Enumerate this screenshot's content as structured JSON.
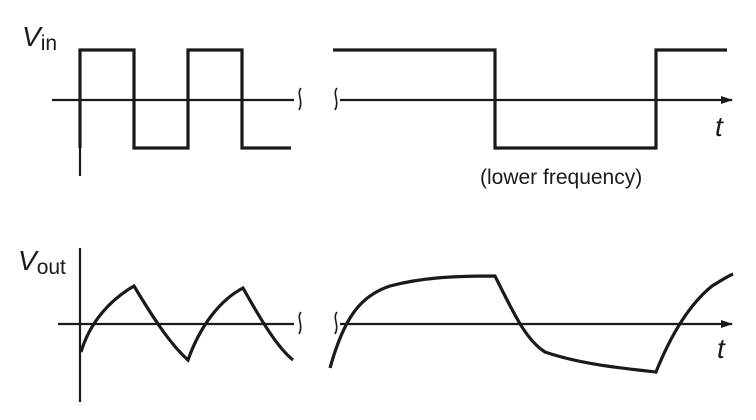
{
  "top": {
    "symbol": "V",
    "subscript": "in",
    "t_label": "t",
    "note": "(lower frequency)"
  },
  "bottom": {
    "symbol": "V",
    "subscript": "out",
    "t_label": "t"
  },
  "stroke_color": "#1a1a1a"
}
